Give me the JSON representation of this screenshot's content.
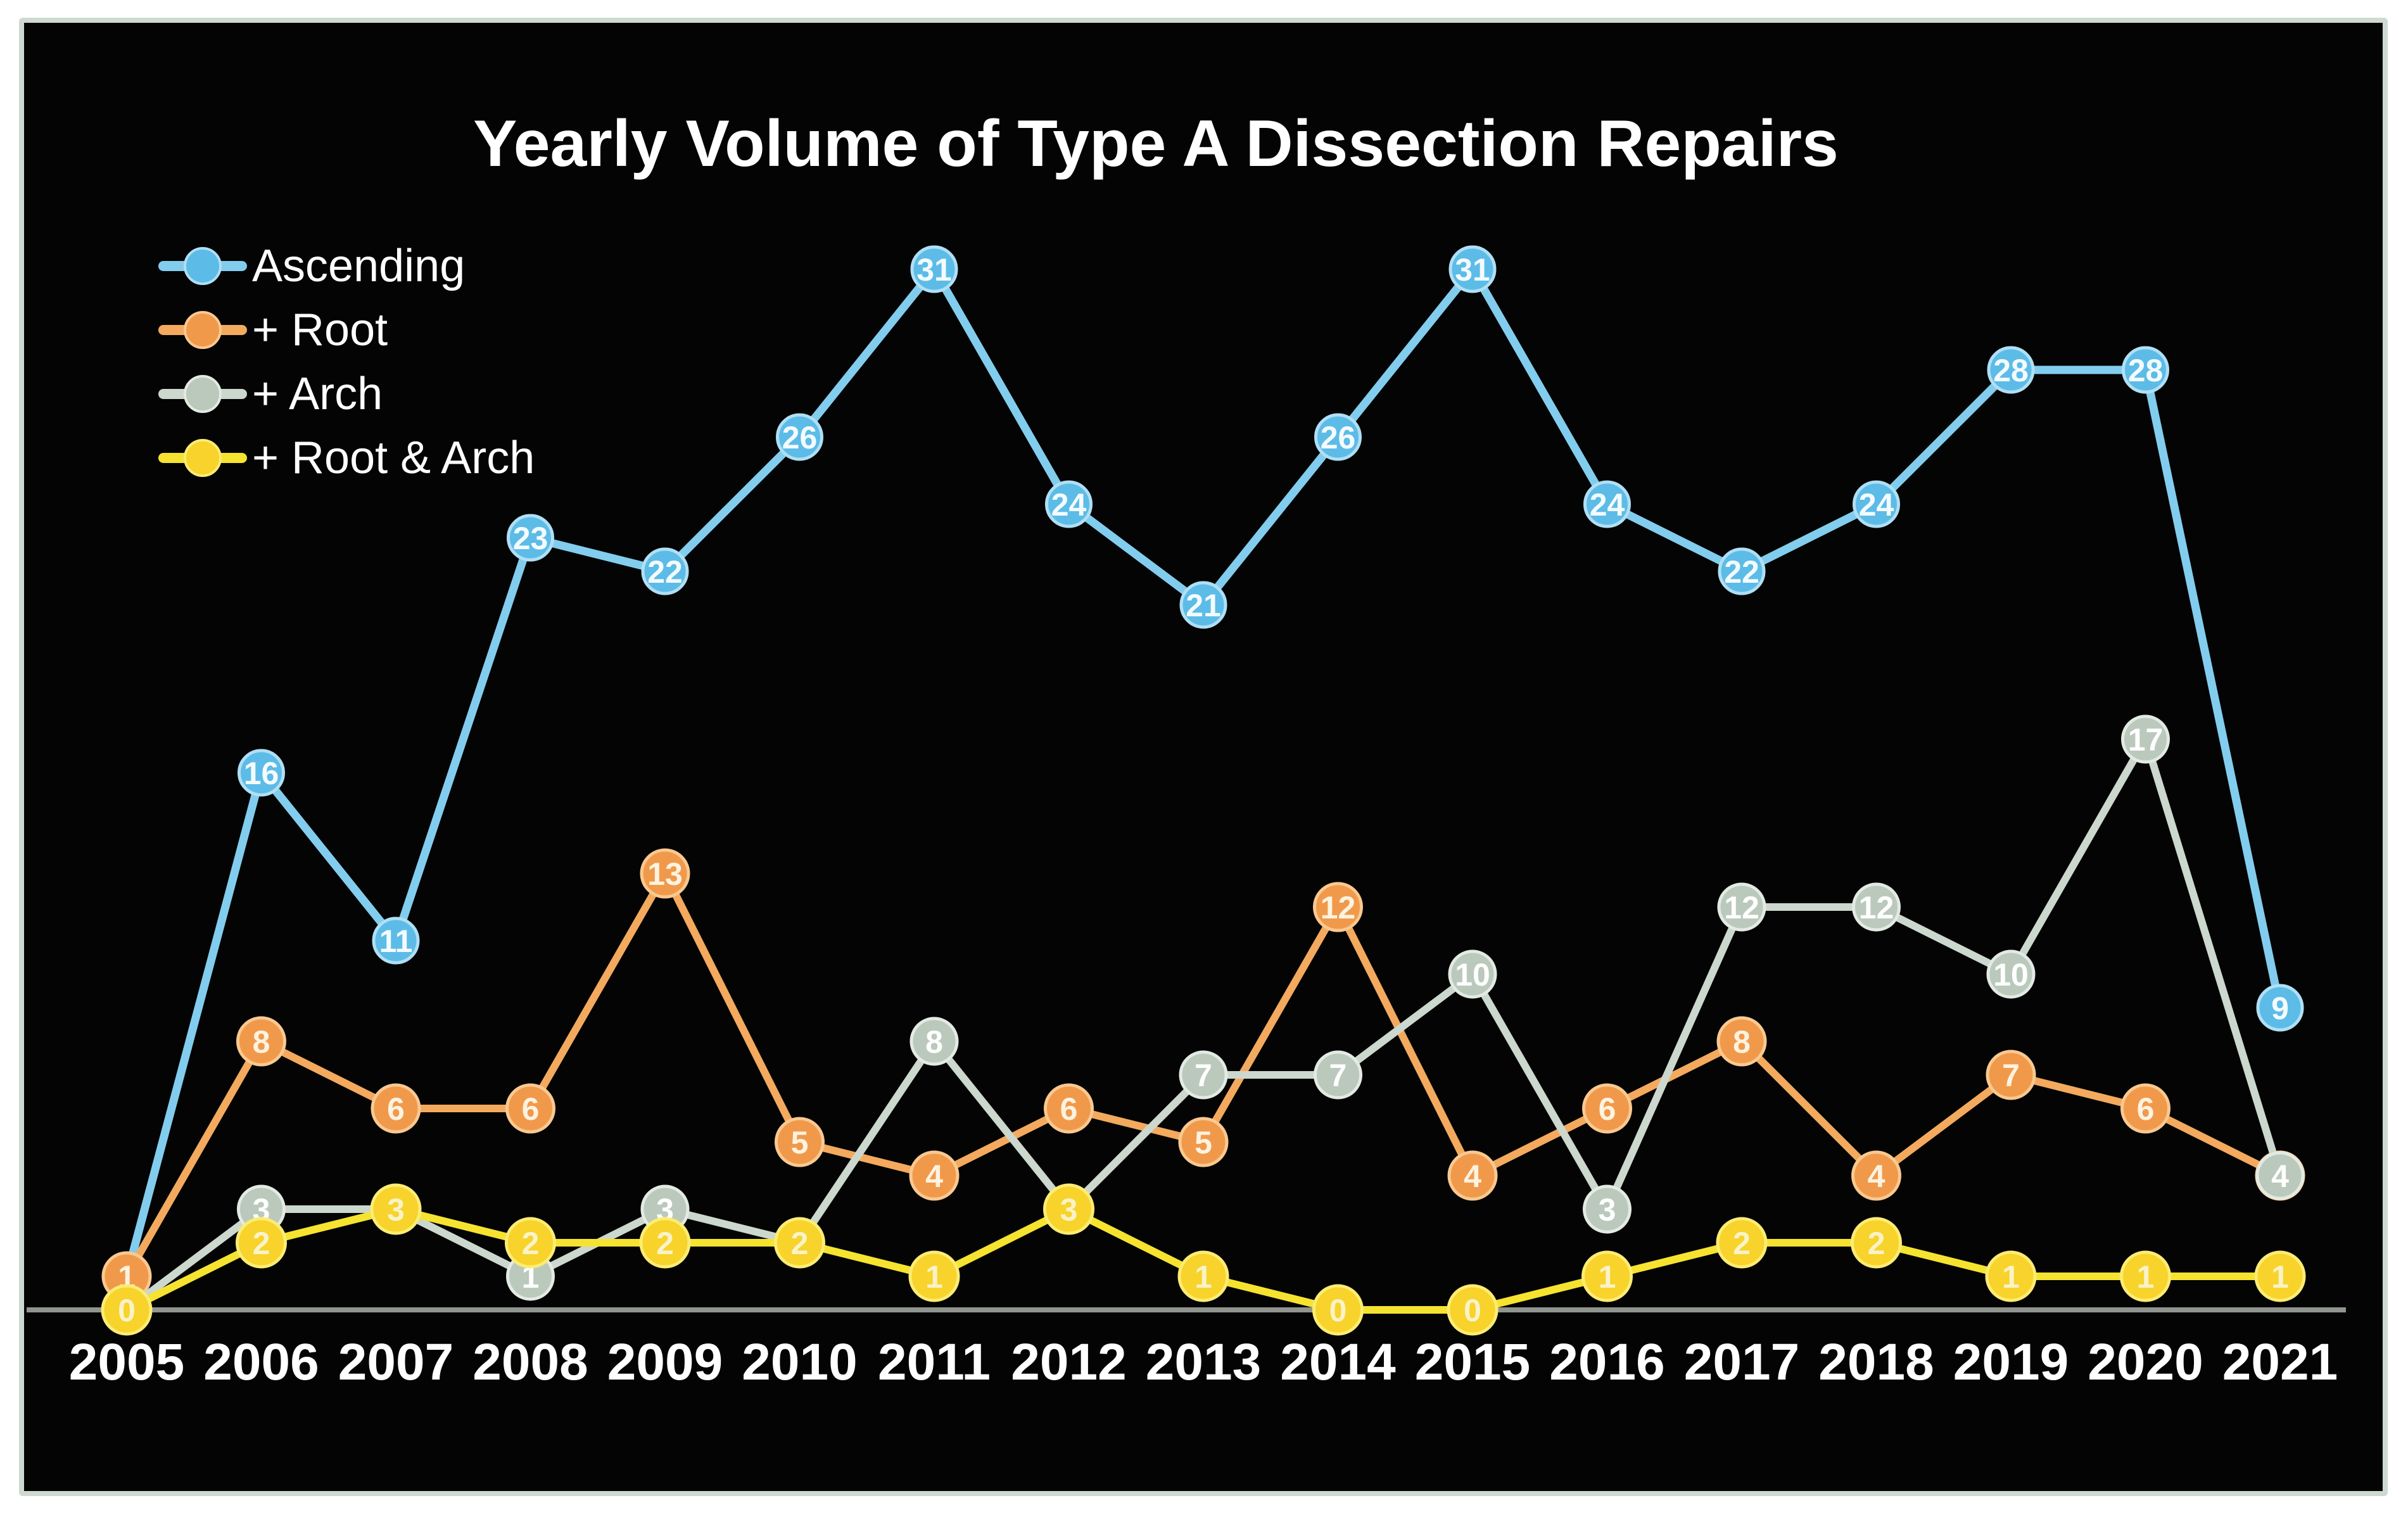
{
  "title": "Yearly Volume of Type A Dissection Repairs",
  "colors": {
    "background": "#040404",
    "frame": "#cdd9d1",
    "axis": "#90958f",
    "text": "#ffffff"
  },
  "chart_data": {
    "type": "line",
    "title": "Yearly Volume of Type A Dissection Repairs",
    "x": [
      2005,
      2006,
      2007,
      2008,
      2009,
      2010,
      2011,
      2012,
      2013,
      2014,
      2015,
      2016,
      2017,
      2018,
      2019,
      2020,
      2021
    ],
    "series": [
      {
        "name": "Ascending",
        "values": [
          1,
          16,
          11,
          23,
          22,
          26,
          31,
          24,
          21,
          26,
          31,
          24,
          22,
          24,
          28,
          28,
          9
        ],
        "line_color": "#82cdee",
        "marker_color": "#5cbce7",
        "marker_edge": "#b0dff4",
        "label_color": "#f4fbff"
      },
      {
        "name": "+ Root",
        "values": [
          1,
          8,
          6,
          6,
          13,
          5,
          4,
          6,
          5,
          12,
          4,
          6,
          8,
          4,
          7,
          6,
          4
        ],
        "line_color": "#f3aa5e",
        "marker_color": "#f1994b",
        "marker_edge": "#f8c990",
        "label_color": "#fdf3e0"
      },
      {
        "name": "+ Arch",
        "values": [
          0,
          3,
          3,
          1,
          3,
          2,
          8,
          3,
          7,
          7,
          10,
          3,
          12,
          12,
          10,
          17,
          4
        ],
        "line_color": "#ccd7cd",
        "marker_color": "#bac9bc",
        "marker_edge": "#e3eae3",
        "label_color": "#ffffff"
      },
      {
        "name": "+ Root & Arch",
        "values": [
          0,
          2,
          3,
          2,
          2,
          2,
          1,
          3,
          1,
          0,
          0,
          1,
          2,
          2,
          1,
          1,
          1
        ],
        "line_color": "#f6e330",
        "marker_color": "#f7d32b",
        "marker_edge": "#fbec73",
        "label_color": "#faf3c8"
      }
    ],
    "ylim": [
      0,
      33
    ],
    "grid": false,
    "data_labels": true,
    "legend_position": "top-left",
    "x_axis_labels": [
      "2005",
      "2006",
      "2007",
      "2008",
      "2009",
      "2010",
      "2011",
      "2012",
      "2013",
      "2014",
      "2015",
      "2016",
      "2017",
      "2018",
      "2019",
      "2020",
      "2021"
    ]
  }
}
